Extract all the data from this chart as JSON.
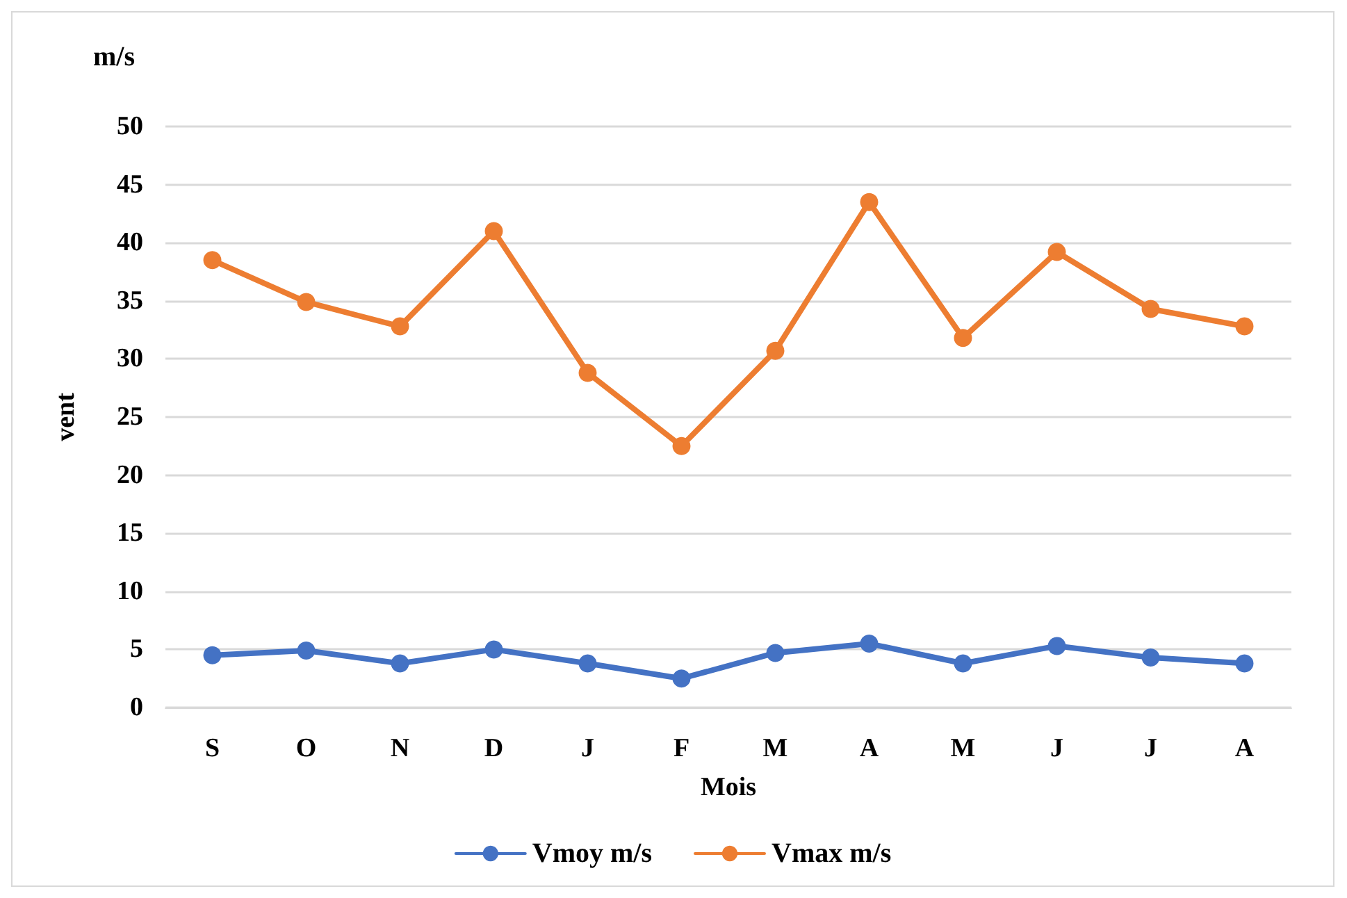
{
  "chart_data": {
    "type": "line",
    "xlabel": "Mois",
    "ylabel": "vent",
    "annotations": [
      "m/s"
    ],
    "categories": [
      "S",
      "O",
      "N",
      "D",
      "J",
      "F",
      "M",
      "A",
      "M",
      "J",
      "J",
      "A"
    ],
    "series": [
      {
        "name": "Vmoy m/s",
        "color": "#4472c4",
        "values": [
          4.5,
          4.9,
          3.8,
          5.0,
          3.8,
          2.5,
          4.7,
          5.5,
          3.8,
          5.3,
          4.3,
          3.8
        ]
      },
      {
        "name": "Vmax m/s",
        "color": "#ed7d31",
        "values": [
          38.5,
          34.9,
          32.8,
          41.0,
          28.8,
          22.5,
          30.7,
          43.5,
          31.8,
          39.2,
          34.3,
          32.8
        ]
      }
    ],
    "ylim": [
      0,
      50
    ],
    "yticks": [
      0,
      5,
      10,
      15,
      20,
      25,
      30,
      35,
      40,
      45,
      50
    ],
    "grid": "y",
    "legend": "bottom",
    "marker": "circle",
    "line_style": "solid"
  }
}
